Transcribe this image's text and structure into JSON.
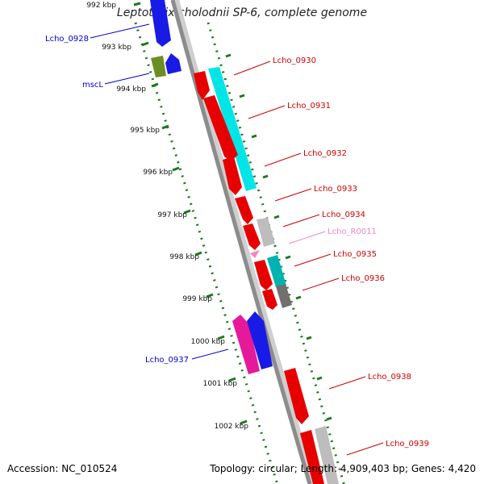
{
  "title": "Leptothrix cholodnii SP-6, complete genome",
  "footer": {
    "accession_label": "Accession:",
    "accession": "NC_010524",
    "topology_label": "Topology:",
    "topology": "circular;",
    "length_label": "Length:",
    "length": "4,909,403 bp;",
    "genes_label": "Genes:",
    "genes": "4,420"
  },
  "colors": {
    "backbone": "#8c8c8c",
    "ruler": "#1a7a1a",
    "label_forward": "#0000cc",
    "label_reverse": "#cc0000",
    "label_rna": "#ee88bb"
  },
  "ruler_ticks": [
    "992 kbp",
    "993 kbp",
    "994 kbp",
    "995 kbp",
    "996 kbp",
    "997 kbp",
    "998 kbp",
    "999 kbp",
    "1000 kbp",
    "1001 kbp",
    "1002 kbp"
  ],
  "gene_labels": [
    {
      "text": "Lcho_0928",
      "side": "left"
    },
    {
      "text": "mscL",
      "side": "left"
    },
    {
      "text": "Lcho_0930",
      "side": "right"
    },
    {
      "text": "Lcho_0931",
      "side": "right"
    },
    {
      "text": "Lcho_0932",
      "side": "right"
    },
    {
      "text": "Lcho_0933",
      "side": "right"
    },
    {
      "text": "Lcho_0934",
      "side": "right"
    },
    {
      "text": "Lcho_R0011",
      "side": "right"
    },
    {
      "text": "Lcho_0935",
      "side": "right"
    },
    {
      "text": "Lcho_0936",
      "side": "right"
    },
    {
      "text": "Lcho_0937",
      "side": "left"
    },
    {
      "text": "Lcho_0938",
      "side": "right"
    },
    {
      "text": "Lcho_0939",
      "side": "right"
    }
  ]
}
